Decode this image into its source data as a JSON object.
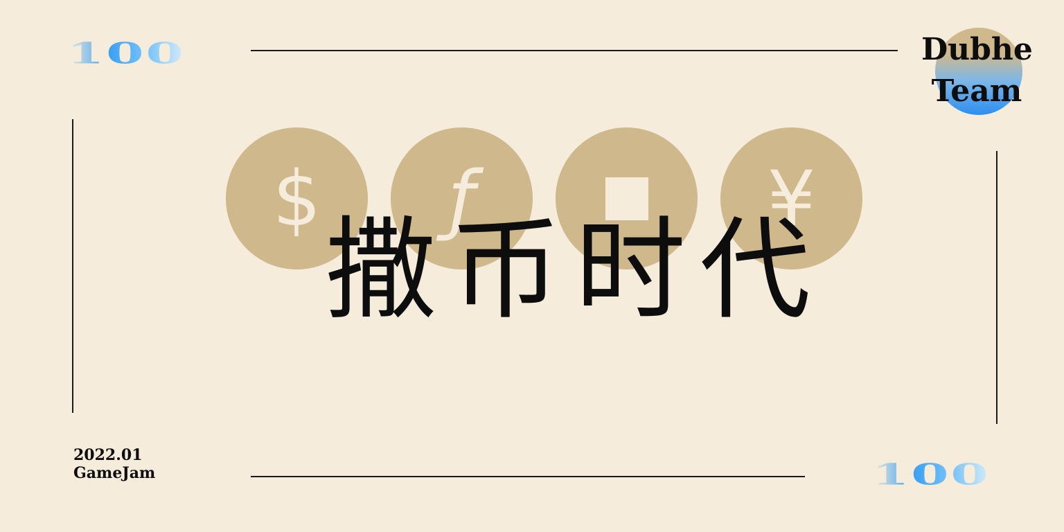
{
  "corner_numbers": {
    "top_left": "100",
    "bottom_right": "100"
  },
  "title": "撒币时代",
  "team": {
    "line1": "Dubhe",
    "line2": "Team"
  },
  "event": {
    "date": "2022.01",
    "name": "GameJam"
  },
  "coins": [
    {
      "symbol": "$",
      "icon": "dollar-icon"
    },
    {
      "symbol": "ƒ",
      "icon": "florin-icon"
    },
    {
      "symbol": "",
      "icon": "square-coin-icon"
    },
    {
      "symbol": "¥",
      "icon": "yen-icon"
    }
  ],
  "colors": {
    "background": "#f5ecdc",
    "coin": "#cfb88b",
    "accent_blue": "#39a0f2",
    "text": "#0d0d0d"
  }
}
